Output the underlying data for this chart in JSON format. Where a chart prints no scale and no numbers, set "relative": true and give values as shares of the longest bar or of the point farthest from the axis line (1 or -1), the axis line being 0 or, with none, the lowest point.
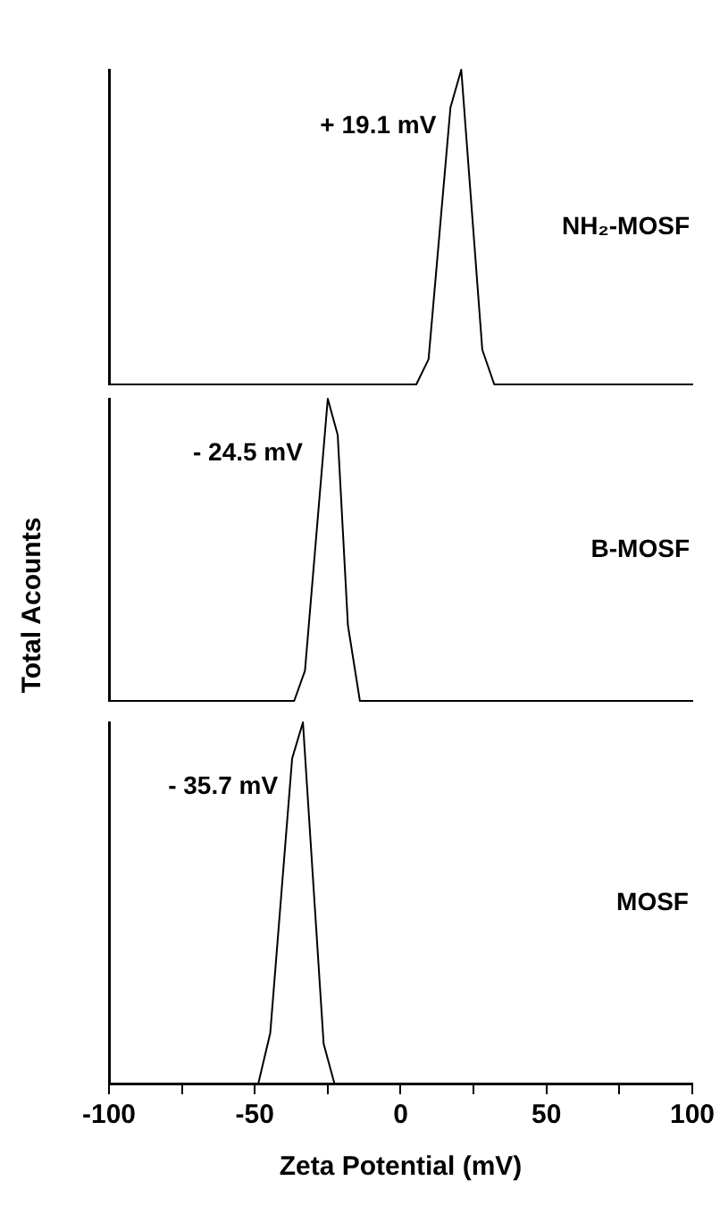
{
  "chart_data": [
    {
      "type": "line",
      "relative": true,
      "xlim": [
        -100,
        100
      ],
      "tick_labels": false,
      "legend": false,
      "marker": "none",
      "ylabel": "Total Acounts",
      "series": [
        {
          "name": "NH₂-MOSF",
          "color": "#000000",
          "x": [
            -100,
            5.2,
            9.4,
            16.9,
            20.6,
            27.8,
            31.9,
            100
          ],
          "values": [
            0,
            0,
            0.08,
            0.88,
            1,
            0.11,
            0,
            0
          ]
        }
      ],
      "annotations": [
        "+ 19.1 mV"
      ]
    },
    {
      "type": "line",
      "relative": true,
      "xlim": [
        -100,
        100
      ],
      "tick_labels": false,
      "legend": false,
      "marker": "none",
      "series": [
        {
          "name": "B-MOSF",
          "color": "#000000",
          "x": [
            -100,
            -36.6,
            -32.9,
            -25.1,
            -21.7,
            -18.2,
            -14.1,
            100
          ],
          "values": [
            0,
            0,
            0.1,
            1,
            0.88,
            0.25,
            0,
            0
          ]
        }
      ],
      "annotations": [
        "- 24.5 mV"
      ]
    },
    {
      "type": "line",
      "relative": true,
      "xlim": [
        -100,
        100
      ],
      "xticks": [
        -100,
        {
          "value": -75,
          "label": null
        },
        -50,
        {
          "value": -25,
          "label": null
        },
        0,
        {
          "value": 25,
          "label": null
        },
        50,
        {
          "value": 75,
          "label": null
        },
        100
      ],
      "tick_labels": "x",
      "legend": false,
      "marker": "none",
      "xlabel": "Zeta Potential (mV)",
      "series": [
        {
          "name": "MOSF",
          "color": "#000000",
          "x": [
            -100,
            -48.8,
            -44.7,
            -37.2,
            -33.5,
            -26.4,
            -22.7,
            100
          ],
          "values": [
            0,
            0,
            0.14,
            0.9,
            1,
            0.11,
            0,
            0
          ]
        }
      ],
      "annotations": [
        "- 35.7 mV"
      ]
    }
  ]
}
